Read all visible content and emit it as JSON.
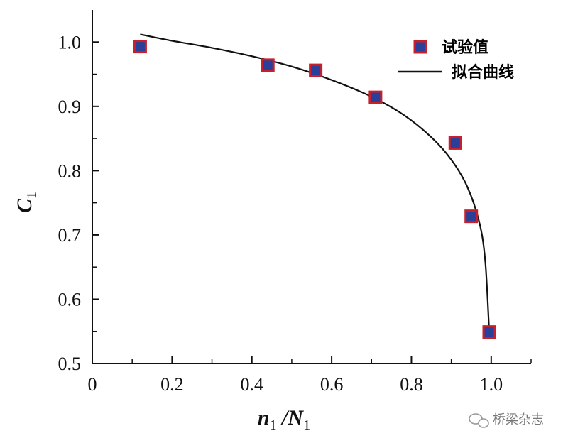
{
  "chart_data": {
    "type": "scatter",
    "xlabel": {
      "main": "n",
      "sub1": "1",
      "sep": " /N",
      "sub2": "1"
    },
    "ylabel": {
      "main": "C",
      "sub": "1"
    },
    "xlim": [
      0,
      1.1
    ],
    "ylim": [
      0.5,
      1.05
    ],
    "xticks": [
      {
        "v": 0,
        "label": "0"
      },
      {
        "v": 0.2,
        "label": "0.2"
      },
      {
        "v": 0.4,
        "label": "0.4"
      },
      {
        "v": 0.6,
        "label": "0.6"
      },
      {
        "v": 0.8,
        "label": "0.8"
      },
      {
        "v": 1.0,
        "label": "1.0"
      }
    ],
    "yticks": [
      {
        "v": 0.5,
        "label": "0.5"
      },
      {
        "v": 0.6,
        "label": "0.6"
      },
      {
        "v": 0.7,
        "label": "0.7"
      },
      {
        "v": 0.8,
        "label": "0.8"
      },
      {
        "v": 0.9,
        "label": "0.9"
      },
      {
        "v": 1.0,
        "label": "1.0"
      }
    ],
    "grid": false,
    "legend_position": "top-right",
    "series": [
      {
        "name": "试验值",
        "kind": "markers",
        "marker_fill": "#2a3f9a",
        "marker_edge": "#c8202a",
        "points": [
          [
            0.12,
            0.993
          ],
          [
            0.44,
            0.964
          ],
          [
            0.56,
            0.956
          ],
          [
            0.71,
            0.914
          ],
          [
            0.91,
            0.843
          ],
          [
            0.95,
            0.729
          ],
          [
            0.995,
            0.549
          ]
        ]
      },
      {
        "name": "拟合曲线",
        "kind": "line",
        "color": "#111111",
        "points": [
          [
            0.12,
            1.012
          ],
          [
            0.2,
            1.002
          ],
          [
            0.3,
            0.991
          ],
          [
            0.4,
            0.978
          ],
          [
            0.5,
            0.962
          ],
          [
            0.6,
            0.941
          ],
          [
            0.7,
            0.915
          ],
          [
            0.78,
            0.887
          ],
          [
            0.85,
            0.852
          ],
          [
            0.9,
            0.817
          ],
          [
            0.94,
            0.775
          ],
          [
            0.97,
            0.72
          ],
          [
            0.985,
            0.66
          ],
          [
            0.995,
            0.55
          ]
        ]
      }
    ]
  },
  "watermark": {
    "icon": "wechat-icon",
    "text": "桥梁杂志"
  }
}
